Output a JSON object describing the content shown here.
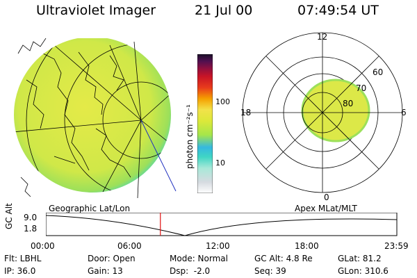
{
  "header": {
    "title": "Ultraviolet Imager",
    "date": "21 Jul 00",
    "time": "07:49:54 UT"
  },
  "colorbar": {
    "unit_label": "photon cm⁻²s⁻¹",
    "ticks": [
      {
        "label": "100",
        "value": 100
      },
      {
        "label": "10",
        "value": 10
      }
    ],
    "colors": [
      "#ffffff",
      "#d6dbe0",
      "#a8e8d8",
      "#40d6c4",
      "#35b8e0",
      "#a6e64a",
      "#dce83a",
      "#f2e24a",
      "#f5a000",
      "#e83b1c",
      "#c81426",
      "#8c1040",
      "#501050",
      "#1a1028"
    ]
  },
  "left_panel": {
    "label": "Geographic Lat/Lon"
  },
  "right_panel": {
    "label": "Apex MLat/MLT",
    "mlt_labels": {
      "top": "12",
      "left": "18",
      "right": "6",
      "bottom": "0"
    },
    "lat_labels": [
      "60",
      "70",
      "80"
    ]
  },
  "gc_alt": {
    "label": "GC Alt",
    "y_ticks": [
      "9.0",
      "1.8"
    ],
    "x_ticks": [
      "00:00",
      "06:00",
      "12:00",
      "18:00",
      "23:59"
    ],
    "current_time_hours": 7.83
  },
  "status": {
    "flt": "Flt: LBHL",
    "ip": "IP: 36.0",
    "door": "Door: Open",
    "gain": "Gain: 13",
    "mode": "Mode: Normal",
    "dsp": "Dsp:  -2.0",
    "gc_alt": "GC Alt: 4.8 Re",
    "seq": "Seq: 39",
    "glat": "GLat: 81.2",
    "glon": "GLon: 310.6"
  }
}
